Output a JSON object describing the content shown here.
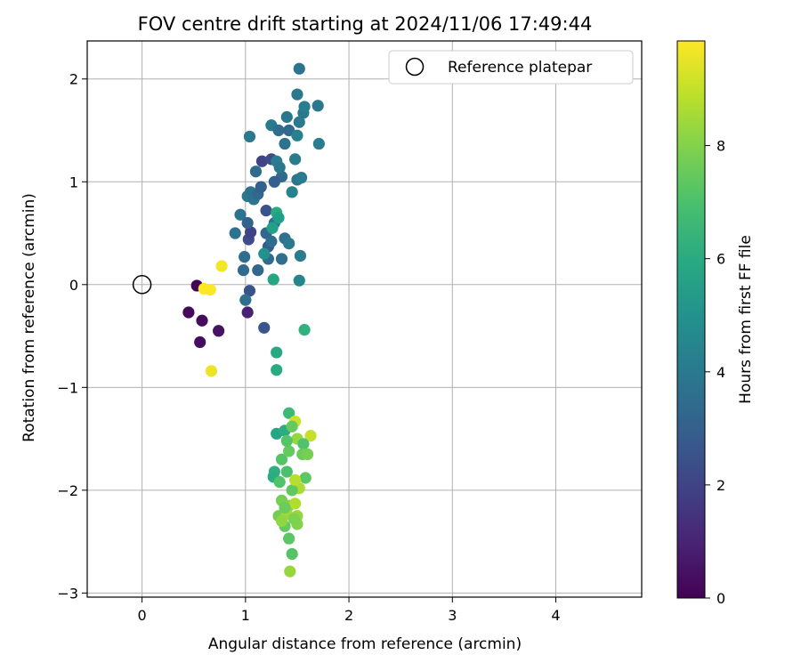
{
  "chart_data": {
    "type": "scatter",
    "title": "FOV centre drift starting at 2024/11/06 17:49:44",
    "xlabel": "Angular distance from reference (arcmin)",
    "ylabel": "Rotation from reference (arcmin)",
    "xlim": [
      -0.53,
      4.83
    ],
    "ylim": [
      -3.04,
      2.37
    ],
    "xticks": [
      0,
      1,
      2,
      3,
      4
    ],
    "yticks": [
      -3,
      -2,
      -1,
      0,
      1,
      2
    ],
    "grid": true,
    "legend": {
      "position": "top-right",
      "entries": [
        "Reference platepar"
      ]
    },
    "reference_point": {
      "label": "Reference platepar",
      "x": 0,
      "y": 0
    },
    "colorbar": {
      "label": "Hours from first FF file",
      "colormap": "viridis",
      "range": [
        0,
        9.85
      ],
      "ticks": [
        0,
        2,
        4,
        6,
        8
      ]
    },
    "points": [
      [
        0.53,
        -0.01,
        0.1
      ],
      [
        0.45,
        -0.27,
        0.2
      ],
      [
        0.58,
        -0.35,
        0.3
      ],
      [
        0.56,
        -0.56,
        0.35
      ],
      [
        0.74,
        -0.45,
        0.5
      ],
      [
        0.6,
        -0.04,
        9.8
      ],
      [
        0.66,
        -0.05,
        9.8
      ],
      [
        0.77,
        0.18,
        9.7
      ],
      [
        0.67,
        -0.84,
        9.6
      ],
      [
        1.02,
        -0.27,
        0.9
      ],
      [
        1.04,
        -0.06,
        2.5
      ],
      [
        1.18,
        -0.42,
        2.6
      ],
      [
        1.12,
        0.14,
        3.3
      ],
      [
        0.98,
        0.14,
        3.4
      ],
      [
        0.99,
        0.27,
        3.5
      ],
      [
        1.0,
        -0.15,
        3.6
      ],
      [
        0.9,
        0.5,
        3.7
      ],
      [
        0.95,
        0.68,
        3.8
      ],
      [
        1.03,
        0.44,
        2.2
      ],
      [
        1.05,
        0.51,
        2.0
      ],
      [
        1.02,
        0.6,
        3.1
      ],
      [
        1.02,
        0.86,
        3.9
      ],
      [
        1.05,
        0.9,
        3.8
      ],
      [
        1.08,
        0.83,
        3.7
      ],
      [
        1.12,
        0.88,
        3.3
      ],
      [
        1.15,
        0.95,
        3.0
      ],
      [
        1.1,
        1.1,
        3.4
      ],
      [
        1.16,
        1.2,
        2.0
      ],
      [
        1.2,
        0.72,
        2.5
      ],
      [
        1.25,
        1.22,
        2.2
      ],
      [
        1.3,
        1.2,
        4.2
      ],
      [
        1.35,
        1.05,
        3.4
      ],
      [
        1.33,
        1.14,
        3.9
      ],
      [
        1.28,
        1.0,
        3.0
      ],
      [
        1.04,
        1.44,
        4.0
      ],
      [
        1.25,
        1.55,
        4.0
      ],
      [
        1.32,
        1.5,
        3.5
      ],
      [
        1.38,
        1.37,
        3.8
      ],
      [
        1.42,
        1.5,
        3.3
      ],
      [
        1.4,
        1.63,
        3.9
      ],
      [
        1.48,
        1.22,
        4.1
      ],
      [
        1.5,
        1.02,
        3.8
      ],
      [
        1.54,
        1.04,
        4.1
      ],
      [
        1.45,
        0.9,
        4.4
      ],
      [
        1.52,
        1.58,
        4.0
      ],
      [
        1.5,
        1.45,
        4.3
      ],
      [
        1.56,
        1.67,
        3.9
      ],
      [
        1.57,
        1.73,
        4.2
      ],
      [
        1.7,
        1.74,
        3.9
      ],
      [
        1.71,
        1.37,
        4.2
      ],
      [
        1.5,
        1.85,
        3.9
      ],
      [
        1.52,
        2.1,
        3.8
      ],
      [
        1.22,
        0.37,
        2.8
      ],
      [
        1.2,
        0.5,
        3.2
      ],
      [
        1.25,
        0.42,
        3.5
      ],
      [
        1.28,
        0.6,
        3.7
      ],
      [
        1.3,
        0.7,
        6.0
      ],
      [
        1.32,
        0.65,
        5.5
      ],
      [
        1.26,
        0.55,
        5.6
      ],
      [
        1.38,
        0.45,
        3.7
      ],
      [
        1.42,
        0.4,
        4.0
      ],
      [
        1.35,
        0.25,
        3.6
      ],
      [
        1.22,
        0.25,
        3.5
      ],
      [
        1.18,
        0.3,
        5.0
      ],
      [
        1.27,
        0.05,
        5.8
      ],
      [
        1.53,
        0.28,
        4.1
      ],
      [
        1.52,
        0.04,
        4.5
      ],
      [
        1.3,
        -0.66,
        5.9
      ],
      [
        1.3,
        -0.83,
        6.0
      ],
      [
        1.57,
        -0.44,
        6.3
      ],
      [
        1.42,
        -1.25,
        6.7
      ],
      [
        1.48,
        -1.33,
        9.1
      ],
      [
        1.3,
        -1.45,
        5.8
      ],
      [
        1.38,
        -1.42,
        6.1
      ],
      [
        1.45,
        -1.38,
        7.5
      ],
      [
        1.5,
        -1.5,
        8.3
      ],
      [
        1.63,
        -1.47,
        9.0
      ],
      [
        1.56,
        -1.55,
        7.1
      ],
      [
        1.28,
        -1.82,
        6.2
      ],
      [
        1.27,
        -1.87,
        6.1
      ],
      [
        1.35,
        -1.7,
        7.2
      ],
      [
        1.42,
        -1.62,
        7.5
      ],
      [
        1.55,
        -1.65,
        7.6
      ],
      [
        1.58,
        -1.88,
        7.3
      ],
      [
        1.52,
        -1.98,
        8.6
      ],
      [
        1.45,
        -2.0,
        7.4
      ],
      [
        1.35,
        -2.1,
        7.8
      ],
      [
        1.42,
        -2.15,
        8.0
      ],
      [
        1.5,
        -2.25,
        8.3
      ],
      [
        1.32,
        -2.25,
        7.7
      ],
      [
        1.38,
        -2.35,
        7.5
      ],
      [
        1.5,
        -2.33,
        8.0
      ],
      [
        1.42,
        -2.47,
        7.3
      ],
      [
        1.45,
        -2.62,
        7.2
      ],
      [
        1.43,
        -2.79,
        8.3
      ],
      [
        1.4,
        -2.23,
        8.4
      ],
      [
        1.48,
        -2.13,
        8.7
      ],
      [
        1.4,
        -1.82,
        7.0
      ],
      [
        1.48,
        -1.9,
        8.8
      ],
      [
        1.33,
        -1.92,
        7.1
      ],
      [
        1.6,
        -1.65,
        7.8
      ],
      [
        1.4,
        -1.52,
        7.2
      ],
      [
        1.35,
        -2.3,
        8.2
      ],
      [
        1.47,
        -2.28,
        7.9
      ],
      [
        1.38,
        -2.17,
        7.6
      ]
    ]
  }
}
